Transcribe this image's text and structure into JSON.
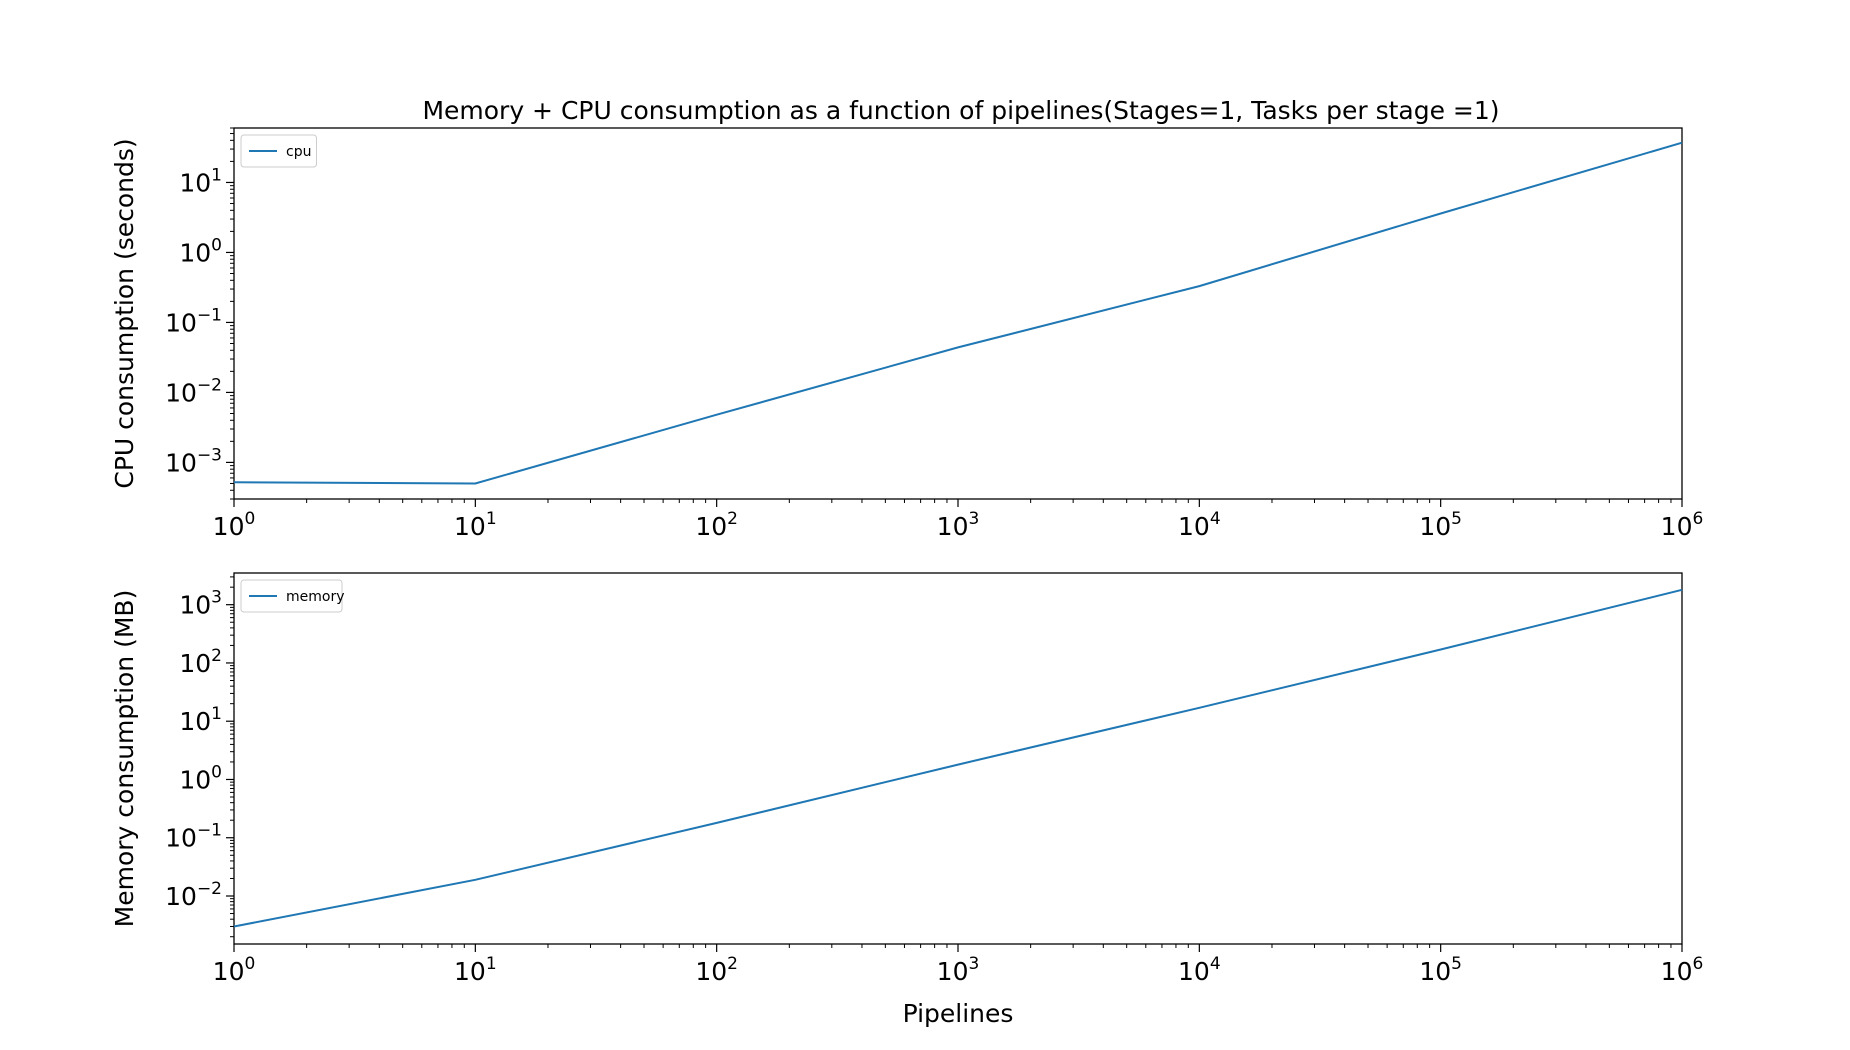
{
  "figure_title": "Memory + CPU consumption as a function of pipelines(Stages=1, Tasks per stage =1)",
  "colors": {
    "line": "#1f77b4",
    "axes": "#000000",
    "background": "#ffffff"
  },
  "chart_data": [
    {
      "type": "line",
      "title": "Memory + CPU consumption as a function of pipelines(Stages=1, Tasks per stage =1)",
      "xlabel": "",
      "ylabel": "CPU consumption (seconds)",
      "x_scale": "log",
      "y_scale": "log",
      "xlim": [
        1,
        1000000
      ],
      "ylim": [
        0.0003,
        60
      ],
      "x_ticks": [
        {
          "value": 1,
          "base": "10",
          "exp": "0"
        },
        {
          "value": 10,
          "base": "10",
          "exp": "1"
        },
        {
          "value": 100,
          "base": "10",
          "exp": "2"
        },
        {
          "value": 1000,
          "base": "10",
          "exp": "3"
        },
        {
          "value": 10000,
          "base": "10",
          "exp": "4"
        },
        {
          "value": 100000,
          "base": "10",
          "exp": "5"
        },
        {
          "value": 1000000,
          "base": "10",
          "exp": "6"
        }
      ],
      "y_ticks": [
        {
          "value": 0.001,
          "base": "10",
          "exp": "−3"
        },
        {
          "value": 0.01,
          "base": "10",
          "exp": "−2"
        },
        {
          "value": 0.1,
          "base": "10",
          "exp": "−1"
        },
        {
          "value": 1,
          "base": "10",
          "exp": "0"
        },
        {
          "value": 10,
          "base": "10",
          "exp": "1"
        }
      ],
      "legend_position": "top-left",
      "grid": false,
      "series": [
        {
          "name": "cpu",
          "x": [
            1,
            10,
            100,
            1000,
            10000,
            100000,
            1000000
          ],
          "y": [
            0.00052,
            0.0005,
            0.0048,
            0.044,
            0.33,
            3.6,
            37
          ]
        }
      ]
    },
    {
      "type": "line",
      "title": "",
      "xlabel": "Pipelines",
      "ylabel": "Memory consumption (MB)",
      "x_scale": "log",
      "y_scale": "log",
      "xlim": [
        1,
        1000000
      ],
      "ylim": [
        0.0015,
        3500
      ],
      "x_ticks": [
        {
          "value": 1,
          "base": "10",
          "exp": "0"
        },
        {
          "value": 10,
          "base": "10",
          "exp": "1"
        },
        {
          "value": 100,
          "base": "10",
          "exp": "2"
        },
        {
          "value": 1000,
          "base": "10",
          "exp": "3"
        },
        {
          "value": 10000,
          "base": "10",
          "exp": "4"
        },
        {
          "value": 100000,
          "base": "10",
          "exp": "5"
        },
        {
          "value": 1000000,
          "base": "10",
          "exp": "6"
        }
      ],
      "y_ticks": [
        {
          "value": 0.01,
          "base": "10",
          "exp": "−2"
        },
        {
          "value": 0.1,
          "base": "10",
          "exp": "−1"
        },
        {
          "value": 1,
          "base": "10",
          "exp": "0"
        },
        {
          "value": 10,
          "base": "10",
          "exp": "1"
        },
        {
          "value": 100,
          "base": "10",
          "exp": "2"
        },
        {
          "value": 1000,
          "base": "10",
          "exp": "3"
        }
      ],
      "legend_position": "top-left",
      "grid": false,
      "series": [
        {
          "name": "memory",
          "x": [
            1,
            10,
            100,
            1000,
            10000,
            100000,
            1000000
          ],
          "y": [
            0.003,
            0.019,
            0.18,
            1.8,
            17,
            170,
            1800
          ]
        }
      ]
    }
  ]
}
